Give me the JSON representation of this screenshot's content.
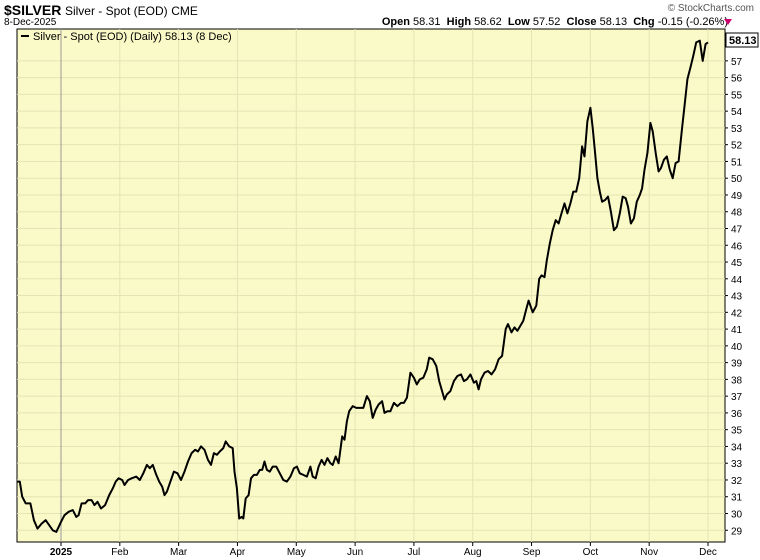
{
  "header": {
    "symbol": "$SILVER",
    "name": "Silver - Spot (EOD)",
    "exchange": "CME",
    "date": "8-Dec-2025",
    "brand": "© StockCharts.com",
    "open_label": "Open",
    "open": "58.31",
    "high_label": "High",
    "high": "58.62",
    "low_label": "Low",
    "low": "57.52",
    "close_label": "Close",
    "close": "58.13",
    "chg_label": "Chg",
    "chg": "-0.15 (-0.26%)",
    "chg_color": "#d0006f"
  },
  "chart_data": {
    "type": "line",
    "legend": "Silver - Spot (EOD) (Daily) 58.13 (8 Dec)",
    "legend_placement": "top-left",
    "last_value_label": "58.13",
    "background": "#fafac8",
    "line_color": "#000000",
    "ylim": [
      28.3,
      58.9
    ],
    "y_ticks": [
      29,
      30,
      31,
      32,
      33,
      34,
      35,
      36,
      37,
      38,
      39,
      40,
      41,
      42,
      43,
      44,
      45,
      46,
      47,
      48,
      49,
      50,
      51,
      52,
      53,
      54,
      55,
      56,
      57
    ],
    "x_ticks": [
      {
        "label": "2025",
        "month": 0,
        "bold": true
      },
      {
        "label": "Feb",
        "month": 1
      },
      {
        "label": "Mar",
        "month": 2
      },
      {
        "label": "Apr",
        "month": 3
      },
      {
        "label": "May",
        "month": 4
      },
      {
        "label": "Jun",
        "month": 5
      },
      {
        "label": "Jul",
        "month": 6
      },
      {
        "label": "Aug",
        "month": 7
      },
      {
        "label": "Sep",
        "month": 8
      },
      {
        "label": "Oct",
        "month": 9
      },
      {
        "label": "Nov",
        "month": 10
      },
      {
        "label": "Dec",
        "month": 11
      }
    ],
    "x_range_months": [
      -0.75,
      11.3
    ],
    "series": [
      {
        "values": [
          [
            -0.75,
            31.9
          ],
          [
            -0.7,
            31.9
          ],
          [
            -0.66,
            31.0
          ],
          [
            -0.6,
            30.6
          ],
          [
            -0.52,
            30.6
          ],
          [
            -0.46,
            29.6
          ],
          [
            -0.4,
            29.1
          ],
          [
            -0.33,
            29.4
          ],
          [
            -0.26,
            29.6
          ],
          [
            -0.2,
            29.3
          ],
          [
            -0.14,
            29.0
          ],
          [
            -0.08,
            28.9
          ],
          [
            0.0,
            29.5
          ],
          [
            0.06,
            29.9
          ],
          [
            0.13,
            30.1
          ],
          [
            0.2,
            30.2
          ],
          [
            0.26,
            29.8
          ],
          [
            0.3,
            29.9
          ],
          [
            0.35,
            30.6
          ],
          [
            0.41,
            30.6
          ],
          [
            0.46,
            30.8
          ],
          [
            0.52,
            30.8
          ],
          [
            0.57,
            30.5
          ],
          [
            0.62,
            30.7
          ],
          [
            0.68,
            30.3
          ],
          [
            0.75,
            30.5
          ],
          [
            0.82,
            31.1
          ],
          [
            0.88,
            31.5
          ],
          [
            0.93,
            31.9
          ],
          [
            0.98,
            32.1
          ],
          [
            1.04,
            32.0
          ],
          [
            1.08,
            31.7
          ],
          [
            1.14,
            32.0
          ],
          [
            1.2,
            32.1
          ],
          [
            1.28,
            32.2
          ],
          [
            1.34,
            32.0
          ],
          [
            1.4,
            32.4
          ],
          [
            1.46,
            32.9
          ],
          [
            1.51,
            32.7
          ],
          [
            1.56,
            32.9
          ],
          [
            1.62,
            32.3
          ],
          [
            1.67,
            31.9
          ],
          [
            1.72,
            31.6
          ],
          [
            1.76,
            31.1
          ],
          [
            1.8,
            31.3
          ],
          [
            1.85,
            31.8
          ],
          [
            1.92,
            32.5
          ],
          [
            1.98,
            32.4
          ],
          [
            2.04,
            32.0
          ],
          [
            2.1,
            32.5
          ],
          [
            2.16,
            33.1
          ],
          [
            2.22,
            33.6
          ],
          [
            2.28,
            33.8
          ],
          [
            2.33,
            33.7
          ],
          [
            2.38,
            34.0
          ],
          [
            2.44,
            33.8
          ],
          [
            2.5,
            33.2
          ],
          [
            2.55,
            32.9
          ],
          [
            2.6,
            33.6
          ],
          [
            2.65,
            33.5
          ],
          [
            2.7,
            33.7
          ],
          [
            2.76,
            33.9
          ],
          [
            2.8,
            34.3
          ],
          [
            2.86,
            34.0
          ],
          [
            2.92,
            33.9
          ],
          [
            2.95,
            32.5
          ],
          [
            2.99,
            31.5
          ],
          [
            3.03,
            29.7
          ],
          [
            3.07,
            29.8
          ],
          [
            3.1,
            29.7
          ],
          [
            3.14,
            30.9
          ],
          [
            3.19,
            31.1
          ],
          [
            3.23,
            32.1
          ],
          [
            3.28,
            32.3
          ],
          [
            3.33,
            32.3
          ],
          [
            3.38,
            32.6
          ],
          [
            3.42,
            32.6
          ],
          [
            3.46,
            33.1
          ],
          [
            3.5,
            32.6
          ],
          [
            3.55,
            32.5
          ],
          [
            3.6,
            32.8
          ],
          [
            3.66,
            32.8
          ],
          [
            3.72,
            32.4
          ],
          [
            3.78,
            32.0
          ],
          [
            3.84,
            31.9
          ],
          [
            3.9,
            32.2
          ],
          [
            3.96,
            32.7
          ],
          [
            4.01,
            32.8
          ],
          [
            4.06,
            32.4
          ],
          [
            4.12,
            32.3
          ],
          [
            4.18,
            32.2
          ],
          [
            4.24,
            32.8
          ],
          [
            4.28,
            32.2
          ],
          [
            4.33,
            32.1
          ],
          [
            4.38,
            32.8
          ],
          [
            4.43,
            33.2
          ],
          [
            4.48,
            32.9
          ],
          [
            4.53,
            33.3
          ],
          [
            4.58,
            33.0
          ],
          [
            4.62,
            32.9
          ],
          [
            4.67,
            33.4
          ],
          [
            4.72,
            33.0
          ],
          [
            4.78,
            34.6
          ],
          [
            4.82,
            34.4
          ],
          [
            4.86,
            35.5
          ],
          [
            4.9,
            36.1
          ],
          [
            4.96,
            36.4
          ],
          [
            5.02,
            36.3
          ],
          [
            5.08,
            36.3
          ],
          [
            5.14,
            36.3
          ],
          [
            5.2,
            37.0
          ],
          [
            5.25,
            36.7
          ],
          [
            5.3,
            35.7
          ],
          [
            5.35,
            36.2
          ],
          [
            5.4,
            36.5
          ],
          [
            5.46,
            36.7
          ],
          [
            5.5,
            36.0
          ],
          [
            5.55,
            36.1
          ],
          [
            5.6,
            36.1
          ],
          [
            5.66,
            36.6
          ],
          [
            5.72,
            36.4
          ],
          [
            5.78,
            36.6
          ],
          [
            5.83,
            36.6
          ],
          [
            5.88,
            36.9
          ],
          [
            5.94,
            38.4
          ],
          [
            6.0,
            38.1
          ],
          [
            6.05,
            37.7
          ],
          [
            6.1,
            38.0
          ],
          [
            6.16,
            38.1
          ],
          [
            6.22,
            38.6
          ],
          [
            6.26,
            39.3
          ],
          [
            6.32,
            39.2
          ],
          [
            6.38,
            38.8
          ],
          [
            6.43,
            37.9
          ],
          [
            6.48,
            37.3
          ],
          [
            6.52,
            36.8
          ],
          [
            6.56,
            37.1
          ],
          [
            6.62,
            37.3
          ],
          [
            6.68,
            37.9
          ],
          [
            6.74,
            38.2
          ],
          [
            6.8,
            38.3
          ],
          [
            6.85,
            37.9
          ],
          [
            6.9,
            38.0
          ],
          [
            6.96,
            38.3
          ],
          [
            7.02,
            37.8
          ],
          [
            7.06,
            37.9
          ],
          [
            7.1,
            37.4
          ],
          [
            7.14,
            38.0
          ],
          [
            7.2,
            38.4
          ],
          [
            7.26,
            38.5
          ],
          [
            7.32,
            38.3
          ],
          [
            7.38,
            38.6
          ],
          [
            7.44,
            39.2
          ],
          [
            7.5,
            39.4
          ],
          [
            7.56,
            41.0
          ],
          [
            7.6,
            41.3
          ],
          [
            7.66,
            40.8
          ],
          [
            7.71,
            41.1
          ],
          [
            7.76,
            40.9
          ],
          [
            7.81,
            41.2
          ],
          [
            7.86,
            41.5
          ],
          [
            7.91,
            42.2
          ],
          [
            7.95,
            42.7
          ],
          [
            8.02,
            42.0
          ],
          [
            8.08,
            42.4
          ],
          [
            8.13,
            44.0
          ],
          [
            8.17,
            44.2
          ],
          [
            8.22,
            44.1
          ],
          [
            8.26,
            45.1
          ],
          [
            8.31,
            46.1
          ],
          [
            8.36,
            46.9
          ],
          [
            8.41,
            47.5
          ],
          [
            8.46,
            47.3
          ],
          [
            8.51,
            47.9
          ],
          [
            8.56,
            48.5
          ],
          [
            8.61,
            47.9
          ],
          [
            8.66,
            48.5
          ],
          [
            8.71,
            49.2
          ],
          [
            8.76,
            49.2
          ],
          [
            8.81,
            50.0
          ],
          [
            8.86,
            51.9
          ],
          [
            8.9,
            51.3
          ],
          [
            8.95,
            53.4
          ],
          [
            9.0,
            54.2
          ],
          [
            9.04,
            53.0
          ],
          [
            9.08,
            51.5
          ],
          [
            9.12,
            50.0
          ],
          [
            9.16,
            49.2
          ],
          [
            9.2,
            48.6
          ],
          [
            9.25,
            48.7
          ],
          [
            9.3,
            48.9
          ],
          [
            9.35,
            48.0
          ],
          [
            9.4,
            46.9
          ],
          [
            9.45,
            47.1
          ],
          [
            9.5,
            47.9
          ],
          [
            9.55,
            48.9
          ],
          [
            9.6,
            48.8
          ],
          [
            9.64,
            48.3
          ],
          [
            9.69,
            47.3
          ],
          [
            9.74,
            47.6
          ],
          [
            9.79,
            48.6
          ],
          [
            9.84,
            49.0
          ],
          [
            9.88,
            49.4
          ],
          [
            9.92,
            50.5
          ],
          [
            9.97,
            51.5
          ],
          [
            10.02,
            53.3
          ],
          [
            10.06,
            52.8
          ],
          [
            10.11,
            51.5
          ],
          [
            10.16,
            50.4
          ],
          [
            10.2,
            50.6
          ],
          [
            10.25,
            51.1
          ],
          [
            10.3,
            51.3
          ],
          [
            10.35,
            50.5
          ],
          [
            10.4,
            50.0
          ],
          [
            10.45,
            50.9
          ],
          [
            10.5,
            51.0
          ],
          [
            10.56,
            53.0
          ],
          [
            10.6,
            54.3
          ],
          [
            10.65,
            55.9
          ],
          [
            10.7,
            56.6
          ],
          [
            10.75,
            57.3
          ],
          [
            10.8,
            58.1
          ],
          [
            10.86,
            58.2
          ],
          [
            10.91,
            57.0
          ],
          [
            10.96,
            58.0
          ],
          [
            11.0,
            58.1
          ]
        ]
      }
    ]
  }
}
